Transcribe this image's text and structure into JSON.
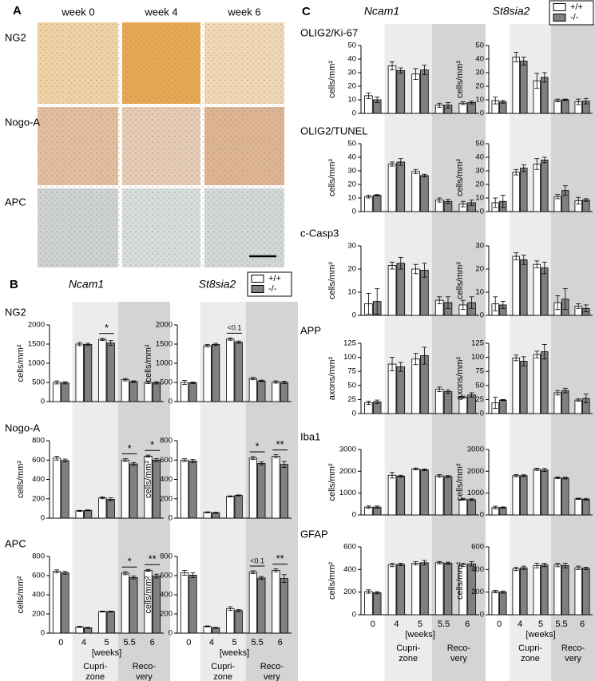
{
  "panel_a": {
    "label": "A",
    "columns": [
      "week 0",
      "week 4",
      "week 6"
    ],
    "rows": [
      "NG2",
      "Nogo-A",
      "APC"
    ]
  },
  "panel_b": {
    "label": "B",
    "genes": [
      "Ncam1",
      "St8sia2"
    ]
  },
  "panel_c": {
    "label": "C",
    "genes": [
      "Ncam1",
      "St8sia2"
    ]
  },
  "chart_data": [
    {
      "type": "bar",
      "title": "NG2",
      "ylabel": "cells/mm²",
      "ylim": [
        0,
        2000
      ],
      "yticks": [
        0,
        500,
        1000,
        1500,
        2000
      ],
      "series": [
        {
          "name": "+/+",
          "color": "#ffffff",
          "values": [
            500,
            1500,
            1620,
            570,
            500
          ],
          "errors": [
            40,
            40,
            30,
            30,
            30
          ]
        },
        {
          "name": "-/-",
          "color": "#808080",
          "values": [
            490,
            1490,
            1530,
            520,
            490
          ],
          "errors": [
            30,
            30,
            60,
            20,
            30
          ]
        }
      ],
      "annotations": [
        {
          "text": "*",
          "at": 2
        }
      ]
    },
    {
      "type": "bar",
      "ylabel": "cells/mm²",
      "ylim": [
        0,
        2000
      ],
      "yticks": [
        0,
        500,
        1000,
        1500,
        2000
      ],
      "series": [
        {
          "name": "+/+",
          "color": "#ffffff",
          "values": [
            500,
            1460,
            1630,
            600,
            510
          ],
          "errors": [
            50,
            30,
            30,
            30,
            30
          ]
        },
        {
          "name": "-/-",
          "color": "#808080",
          "values": [
            490,
            1490,
            1550,
            540,
            500
          ],
          "errors": [
            20,
            30,
            30,
            20,
            30
          ]
        }
      ],
      "annotations": [
        {
          "text": "<0.1",
          "at": 2
        }
      ]
    },
    {
      "type": "bar",
      "title": "Nogo-A",
      "ylabel": "cells/mm²",
      "ylim": [
        0,
        800
      ],
      "yticks": [
        0,
        200,
        400,
        600,
        800
      ],
      "series": [
        {
          "name": "+/+",
          "color": "#ffffff",
          "values": [
            620,
            75,
            210,
            600,
            640
          ],
          "errors": [
            20,
            5,
            10,
            15,
            10
          ]
        },
        {
          "name": "-/-",
          "color": "#808080",
          "values": [
            595,
            80,
            195,
            560,
            600
          ],
          "errors": [
            15,
            5,
            15,
            15,
            15
          ]
        }
      ],
      "annotations": [
        {
          "text": "*",
          "at": 3
        },
        {
          "text": "*",
          "at": 4
        }
      ]
    },
    {
      "type": "bar",
      "ylabel": "cells/mm²",
      "ylim": [
        0,
        800
      ],
      "yticks": [
        0,
        200,
        400,
        600,
        800
      ],
      "series": [
        {
          "name": "+/+",
          "color": "#ffffff",
          "values": [
            600,
            60,
            225,
            620,
            640
          ],
          "errors": [
            15,
            5,
            5,
            15,
            15
          ]
        },
        {
          "name": "-/-",
          "color": "#808080",
          "values": [
            590,
            55,
            235,
            565,
            555
          ],
          "errors": [
            15,
            5,
            5,
            15,
            30
          ]
        }
      ],
      "annotations": [
        {
          "text": "*",
          "at": 3
        },
        {
          "text": "**",
          "at": 4
        }
      ]
    },
    {
      "type": "bar",
      "title": "APC",
      "ylabel": "cells/mm²",
      "ylim": [
        0,
        800
      ],
      "yticks": [
        0,
        200,
        400,
        600,
        800
      ],
      "series": [
        {
          "name": "+/+",
          "color": "#ffffff",
          "values": [
            645,
            65,
            225,
            625,
            655
          ],
          "errors": [
            15,
            5,
            5,
            15,
            10
          ]
        },
        {
          "name": "-/-",
          "color": "#808080",
          "values": [
            630,
            55,
            225,
            580,
            595
          ],
          "errors": [
            15,
            5,
            5,
            15,
            20
          ]
        }
      ],
      "annotations": [
        {
          "text": "*",
          "at": 3
        },
        {
          "text": "**",
          "at": 4
        }
      ],
      "categories": [
        "0",
        "4",
        "5",
        "5.5",
        "6"
      ],
      "xlabel": "[weeks]",
      "groups": [
        {
          "label": [
            "Cupri-",
            "zone"
          ],
          "from": 1,
          "to": 2,
          "color": "#ececec"
        },
        {
          "label": [
            "Reco-",
            "very"
          ],
          "from": 3,
          "to": 4,
          "color": "#d4d4d4"
        }
      ]
    },
    {
      "type": "bar",
      "ylabel": "cells/mm²",
      "ylim": [
        0,
        800
      ],
      "yticks": [
        0,
        200,
        400,
        600,
        800
      ],
      "series": [
        {
          "name": "+/+",
          "color": "#ffffff",
          "values": [
            630,
            70,
            255,
            635,
            655
          ],
          "errors": [
            25,
            5,
            20,
            15,
            15
          ]
        },
        {
          "name": "-/-",
          "color": "#808080",
          "values": [
            605,
            55,
            235,
            575,
            570
          ],
          "errors": [
            25,
            5,
            10,
            15,
            40
          ]
        }
      ],
      "annotations": [
        {
          "text": "<0.1",
          "at": 3
        },
        {
          "text": "**",
          "at": 4
        }
      ],
      "categories": [
        "0",
        "4",
        "5",
        "5.5",
        "6"
      ],
      "xlabel": "[weeks]",
      "groups": [
        {
          "label": [
            "Cupri-",
            "zone"
          ],
          "from": 1,
          "to": 2,
          "color": "#ececec"
        },
        {
          "label": [
            "Reco-",
            "very"
          ],
          "from": 3,
          "to": 4,
          "color": "#d4d4d4"
        }
      ]
    },
    {
      "type": "bar",
      "title": "OLIG2/Ki-67",
      "ylabel": "cells/mm²",
      "ylim": [
        0,
        50
      ],
      "yticks": [
        0,
        10,
        20,
        30,
        40,
        50
      ],
      "series": [
        {
          "name": "+/+",
          "color": "#ffffff",
          "values": [
            13,
            35,
            29,
            6,
            7.5
          ],
          "errors": [
            2,
            3,
            4,
            1.5,
            1
          ]
        },
        {
          "name": "-/-",
          "color": "#808080",
          "values": [
            10,
            31.5,
            32,
            6,
            8
          ],
          "errors": [
            2,
            2,
            3.5,
            2,
            1
          ]
        }
      ]
    },
    {
      "type": "bar",
      "ylabel": "cells/mm²",
      "ylim": [
        0,
        50
      ],
      "yticks": [
        0,
        10,
        20,
        30,
        40,
        50
      ],
      "series": [
        {
          "name": "+/+",
          "color": "#ffffff",
          "values": [
            9.5,
            41.5,
            24,
            9.5,
            8.5
          ],
          "errors": [
            2.5,
            3.5,
            5.5,
            1,
            2
          ]
        },
        {
          "name": "-/-",
          "color": "#808080",
          "values": [
            8.5,
            38.5,
            26.5,
            10,
            9
          ],
          "errors": [
            1,
            3,
            3.5,
            0.5,
            2
          ]
        }
      ]
    },
    {
      "type": "bar",
      "title": "OLIG2/TUNEL",
      "ylabel": "cells/mm²",
      "ylim": [
        0,
        50
      ],
      "yticks": [
        0,
        10,
        20,
        30,
        40,
        50
      ],
      "series": [
        {
          "name": "+/+",
          "color": "#ffffff",
          "values": [
            11,
            35,
            29.5,
            8.5,
            5.5
          ],
          "errors": [
            1,
            1.5,
            1.5,
            1.5,
            2
          ]
        },
        {
          "name": "-/-",
          "color": "#808080",
          "values": [
            12,
            36.5,
            26.5,
            7.5,
            6.5
          ],
          "errors": [
            0.5,
            2.5,
            1,
            1.5,
            2
          ]
        }
      ]
    },
    {
      "type": "bar",
      "ylabel": "cells/mm²",
      "ylim": [
        0,
        50
      ],
      "yticks": [
        0,
        10,
        20,
        30,
        40,
        50
      ],
      "series": [
        {
          "name": "+/+",
          "color": "#ffffff",
          "values": [
            6.5,
            29,
            35,
            11,
            8
          ],
          "errors": [
            3.5,
            2,
            4,
            1.5,
            2.5
          ]
        },
        {
          "name": "-/-",
          "color": "#808080",
          "values": [
            7.5,
            32,
            38,
            15.5,
            8.5
          ],
          "errors": [
            4.5,
            2.5,
            2,
            3.5,
            1
          ]
        }
      ]
    },
    {
      "type": "bar",
      "title": "c-Casp3",
      "ylabel": "cells/mm²",
      "ylim": [
        0,
        30
      ],
      "yticks": [
        0,
        10,
        20,
        30
      ],
      "series": [
        {
          "name": "+/+",
          "color": "#ffffff",
          "values": [
            5,
            21.5,
            20,
            6.5,
            4.5
          ],
          "errors": [
            4.5,
            1.5,
            2,
            1.5,
            2
          ]
        },
        {
          "name": "-/-",
          "color": "#808080",
          "values": [
            6,
            22.5,
            19.5,
            5.5,
            5.5
          ],
          "errors": [
            5.5,
            2.5,
            3,
            2.5,
            2.5
          ]
        }
      ]
    },
    {
      "type": "bar",
      "ylabel": "cells/mm²",
      "ylim": [
        0,
        30
      ],
      "yticks": [
        0,
        10,
        20,
        30
      ],
      "series": [
        {
          "name": "+/+",
          "color": "#ffffff",
          "values": [
            5,
            25.5,
            22,
            5.5,
            4
          ],
          "errors": [
            3,
            1.5,
            1.5,
            3,
            1
          ]
        },
        {
          "name": "-/-",
          "color": "#808080",
          "values": [
            4.5,
            24,
            20.5,
            7,
            3
          ],
          "errors": [
            1.5,
            2,
            2.5,
            4.5,
            1.5
          ]
        }
      ]
    },
    {
      "type": "bar",
      "title": "APP",
      "ylabel": "axons/mm²",
      "ylim": [
        0,
        125
      ],
      "yticks": [
        0,
        25,
        50,
        75,
        100,
        125
      ],
      "series": [
        {
          "name": "+/+",
          "color": "#ffffff",
          "values": [
            19,
            88,
            97,
            43,
            29
          ],
          "errors": [
            3,
            12,
            10,
            4,
            2
          ]
        },
        {
          "name": "-/-",
          "color": "#808080",
          "values": [
            21,
            83,
            103,
            39,
            33
          ],
          "errors": [
            3,
            8,
            15,
            3,
            4
          ]
        }
      ]
    },
    {
      "type": "bar",
      "ylabel": "axons/mm²",
      "ylim": [
        0,
        125
      ],
      "yticks": [
        0,
        25,
        50,
        75,
        100,
        125
      ],
      "series": [
        {
          "name": "+/+",
          "color": "#ffffff",
          "values": [
            19,
            99,
            105,
            37,
            24
          ],
          "errors": [
            10,
            5,
            6,
            4,
            2
          ]
        },
        {
          "name": "-/-",
          "color": "#808080",
          "values": [
            24,
            93,
            110,
            41,
            27
          ],
          "errors": [
            1,
            8,
            13,
            4,
            8
          ]
        }
      ]
    },
    {
      "type": "bar",
      "title": "Iba1",
      "ylabel": "cells/mm²",
      "ylim": [
        0,
        3000
      ],
      "yticks": [
        0,
        1000,
        2000,
        3000
      ],
      "series": [
        {
          "name": "+/+",
          "color": "#ffffff",
          "values": [
            360,
            1820,
            2110,
            1790,
            720
          ],
          "errors": [
            50,
            130,
            40,
            60,
            40
          ]
        },
        {
          "name": "-/-",
          "color": "#808080",
          "values": [
            360,
            1780,
            2070,
            1760,
            700
          ],
          "errors": [
            50,
            40,
            40,
            40,
            40
          ]
        }
      ]
    },
    {
      "type": "bar",
      "ylabel": "cells/mm²",
      "ylim": [
        0,
        3000
      ],
      "yticks": [
        0,
        1000,
        2000,
        3000
      ],
      "series": [
        {
          "name": "+/+",
          "color": "#ffffff",
          "values": [
            340,
            1800,
            2090,
            1700,
            740
          ],
          "errors": [
            60,
            50,
            50,
            40,
            30
          ]
        },
        {
          "name": "-/-",
          "color": "#808080",
          "values": [
            340,
            1800,
            2060,
            1690,
            720
          ],
          "errors": [
            30,
            40,
            70,
            40,
            40
          ]
        }
      ]
    },
    {
      "type": "bar",
      "title": "GFAP",
      "ylabel": "cells/mm²",
      "ylim": [
        0,
        600
      ],
      "yticks": [
        0,
        200,
        400,
        600
      ],
      "series": [
        {
          "name": "+/+",
          "color": "#ffffff",
          "values": [
            205,
            440,
            455,
            460,
            440
          ],
          "errors": [
            15,
            15,
            15,
            10,
            15
          ]
        },
        {
          "name": "-/-",
          "color": "#808080",
          "values": [
            195,
            445,
            460,
            455,
            450
          ],
          "errors": [
            10,
            10,
            20,
            10,
            20
          ]
        }
      ],
      "categories": [
        "0",
        "4",
        "5",
        "5.5",
        "6"
      ],
      "xlabel": "[weeks]",
      "groups": [
        {
          "label": [
            "Cupri-",
            "zone"
          ],
          "from": 1,
          "to": 2,
          "color": "#ececec"
        },
        {
          "label": [
            "Reco-",
            "very"
          ],
          "from": 3,
          "to": 4,
          "color": "#d4d4d4"
        }
      ]
    },
    {
      "type": "bar",
      "ylabel": "cells/mm²",
      "ylim": [
        0,
        600
      ],
      "yticks": [
        0,
        200,
        400,
        600
      ],
      "series": [
        {
          "name": "+/+",
          "color": "#ffffff",
          "values": [
            205,
            405,
            435,
            440,
            415
          ],
          "errors": [
            10,
            15,
            20,
            15,
            15
          ]
        },
        {
          "name": "-/-",
          "color": "#808080",
          "values": [
            200,
            415,
            440,
            435,
            410
          ],
          "errors": [
            10,
            15,
            15,
            20,
            10
          ]
        }
      ],
      "categories": [
        "0",
        "4",
        "5",
        "5.5",
        "6"
      ],
      "xlabel": "[weeks]",
      "groups": [
        {
          "label": [
            "Cupri-",
            "zone"
          ],
          "from": 1,
          "to": 2,
          "color": "#ececec"
        },
        {
          "label": [
            "Reco-",
            "very"
          ],
          "from": 3,
          "to": 4,
          "color": "#d4d4d4"
        }
      ]
    }
  ]
}
